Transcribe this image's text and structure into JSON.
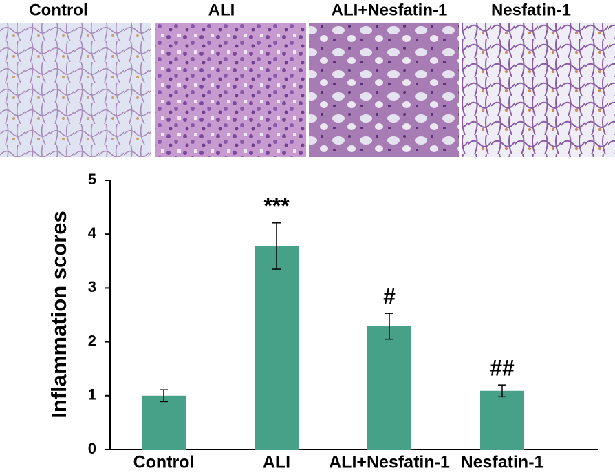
{
  "image_labels": [
    "Control",
    "ALI",
    "ALI+Nesfatin-1",
    "Nesfatin-1"
  ],
  "chart_data": {
    "type": "bar",
    "y_label": "Inflammation scores",
    "categories": [
      "Control",
      "ALI",
      "ALI+Nesfatin-1",
      "Nesfatin-1"
    ],
    "values": [
      1.0,
      3.78,
      2.29,
      1.09
    ],
    "errors": [
      0.11,
      0.43,
      0.24,
      0.11
    ],
    "annotations": [
      null,
      "***",
      "#",
      "##"
    ],
    "color": "#47a088",
    "ylim": [
      0,
      5
    ],
    "yticks": [
      0,
      1,
      2,
      3,
      4,
      5
    ],
    "grid": false
  }
}
